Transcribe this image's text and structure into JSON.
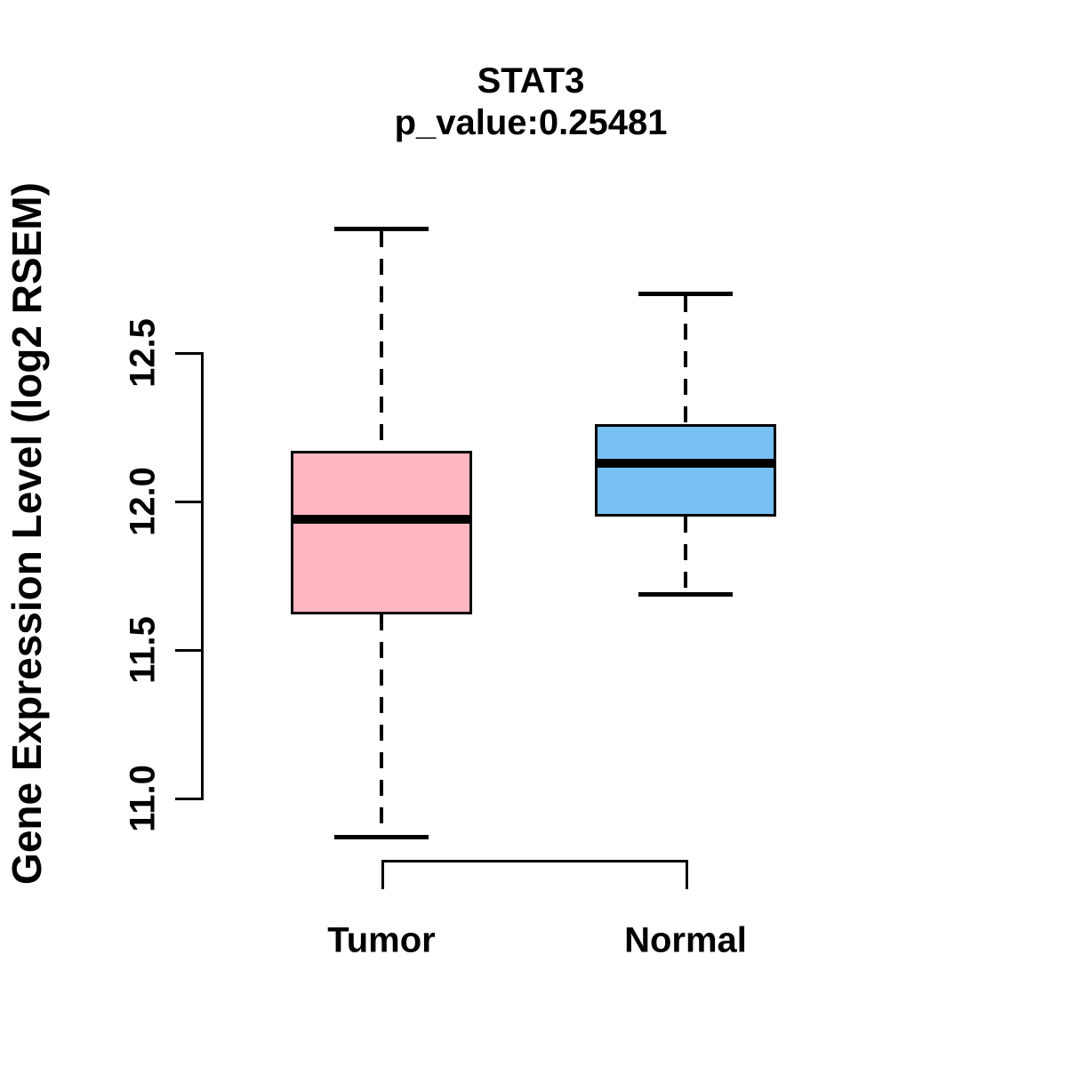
{
  "chart_data": {
    "type": "boxplot",
    "title": "STAT3",
    "subtitle": "p_value:0.25481",
    "ylabel": "Gene Expression Level (log2 RSEM)",
    "xlabel": "",
    "ylim": [
      10.8,
      13.0
    ],
    "yticks": [
      12.5,
      12.0,
      11.5,
      11.0
    ],
    "ytick_labels": [
      "12.5",
      "12.0",
      "11.5",
      "11.0"
    ],
    "grid": "off",
    "legend": "none",
    "axis_color": "#000000",
    "whisker_style": "dashed",
    "groups": [
      {
        "label": "Tumor",
        "fill_color": "#FFB6C1",
        "whisker_low": 10.87,
        "q1": 11.62,
        "median": 11.94,
        "q3": 12.17,
        "whisker_high": 12.92
      },
      {
        "label": "Normal",
        "fill_color": "#78BFF3",
        "whisker_low": 11.69,
        "q1": 11.95,
        "median": 12.13,
        "q3": 12.26,
        "whisker_high": 12.7
      }
    ]
  }
}
